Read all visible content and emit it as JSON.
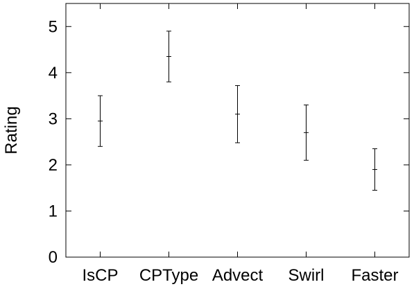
{
  "chart_data": {
    "type": "errorbar",
    "categories": [
      "IsCP",
      "CPType",
      "Advect",
      "Swirl",
      "Faster"
    ],
    "series": [
      {
        "mean": [
          2.95,
          4.35,
          3.1,
          2.7,
          1.9
        ],
        "lower": [
          2.4,
          3.8,
          2.48,
          2.1,
          1.45
        ],
        "upper": [
          3.5,
          4.9,
          3.72,
          3.3,
          2.35
        ]
      }
    ],
    "ylabel": "Rating",
    "ylim": [
      0,
      5.5
    ],
    "yticks": [
      "0",
      "1",
      "2",
      "3",
      "4",
      "5"
    ],
    "grid": false,
    "colors": {
      "axis": "#000000",
      "marks": "#000000"
    }
  }
}
